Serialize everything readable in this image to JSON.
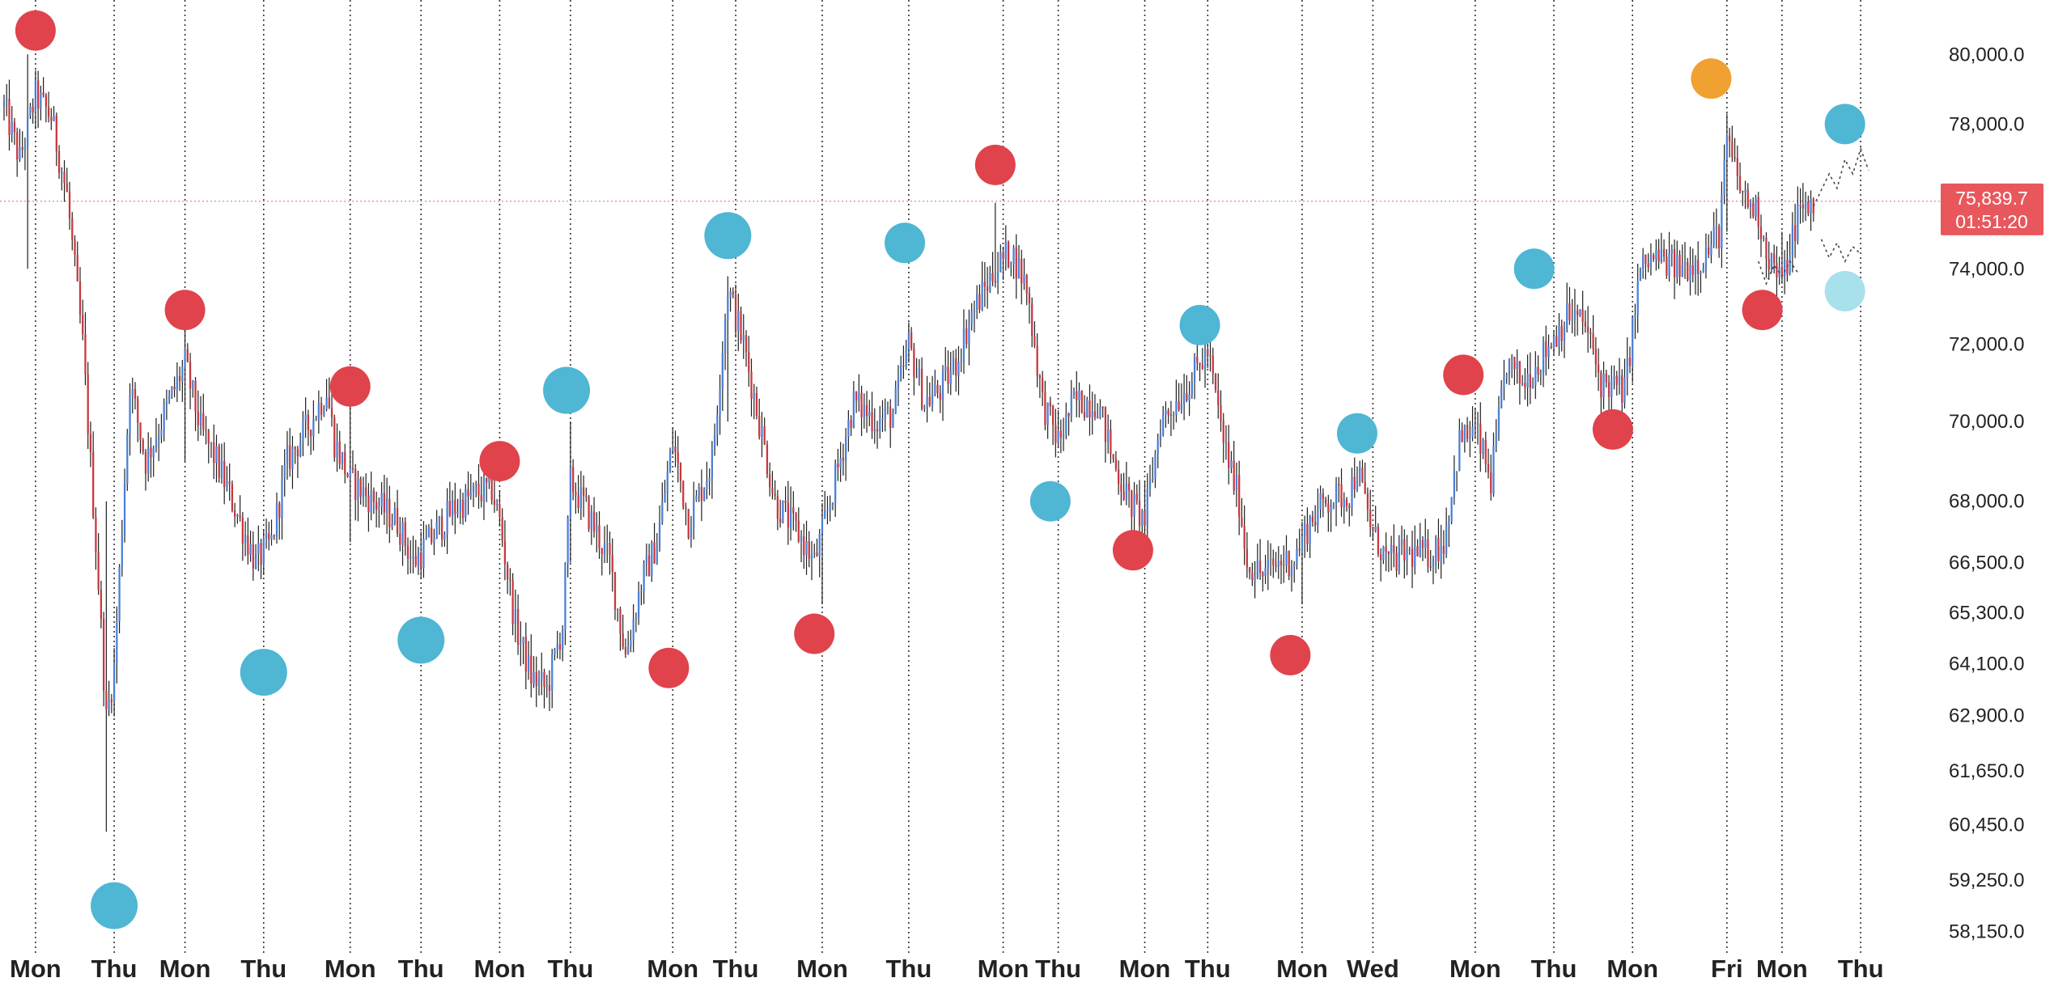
{
  "colors": {
    "up": "#4a7fd6",
    "down": "#c8373f",
    "wick": "#1f1f1f",
    "marker_red": "#e0434b",
    "marker_blue": "#4fb6d4",
    "marker_orange": "#f0a132",
    "marker_light": "#a8e0eb",
    "price_line": "#d9534f",
    "badge_bg": "#e8575c",
    "grid": "#333333",
    "text": "#222222"
  },
  "current_price": {
    "price": "75,839.7",
    "countdown": "01:51:20",
    "value": 75839.7
  },
  "chart_data": {
    "type": "candlestick",
    "title": "",
    "x_index_max": 240,
    "y_scale": "log",
    "ylim": [
      57700,
      81600
    ],
    "y_ticks": [
      {
        "value": 80000,
        "label": "80,000.0"
      },
      {
        "value": 78000,
        "label": "78,000.0"
      },
      {
        "value": 74000,
        "label": "74,000.0"
      },
      {
        "value": 72000,
        "label": "72,000.0"
      },
      {
        "value": 70000,
        "label": "70,000.0"
      },
      {
        "value": 68000,
        "label": "68,000.0"
      },
      {
        "value": 66500,
        "label": "66,500.0"
      },
      {
        "value": 65300,
        "label": "65,300.0"
      },
      {
        "value": 64100,
        "label": "64,100.0"
      },
      {
        "value": 62900,
        "label": "62,900.0"
      },
      {
        "value": 61650,
        "label": "61,650.0"
      },
      {
        "value": 60450,
        "label": "60,450.0"
      },
      {
        "value": 59250,
        "label": "59,250.0"
      },
      {
        "value": 58150,
        "label": "58,150.0"
      }
    ],
    "x_labels": [
      {
        "i": 4,
        "label": "Mon"
      },
      {
        "i": 14,
        "label": "Thu"
      },
      {
        "i": 23,
        "label": "Mon"
      },
      {
        "i": 33,
        "label": "Thu"
      },
      {
        "i": 44,
        "label": "Mon"
      },
      {
        "i": 53,
        "label": "Thu"
      },
      {
        "i": 63,
        "label": "Mon"
      },
      {
        "i": 72,
        "label": "Thu"
      },
      {
        "i": 85,
        "label": "Mon"
      },
      {
        "i": 93,
        "label": "Thu"
      },
      {
        "i": 104,
        "label": "Mon"
      },
      {
        "i": 115,
        "label": "Thu"
      },
      {
        "i": 127,
        "label": "Mon"
      },
      {
        "i": 134,
        "label": "Thu"
      },
      {
        "i": 145,
        "label": "Mon"
      },
      {
        "i": 153,
        "label": "Thu"
      },
      {
        "i": 165,
        "label": "Mon"
      },
      {
        "i": 174,
        "label": "Wed"
      },
      {
        "i": 187,
        "label": "Mon"
      },
      {
        "i": 197,
        "label": "Thu"
      },
      {
        "i": 207,
        "label": "Mon"
      },
      {
        "i": 219,
        "label": "Fri"
      },
      {
        "i": 226,
        "label": "Mon"
      },
      {
        "i": 236,
        "label": "Thu"
      }
    ],
    "price_path": [
      [
        0,
        78500
      ],
      [
        2,
        77000
      ],
      [
        4,
        78800
      ],
      [
        6,
        78200
      ],
      [
        8,
        76000
      ],
      [
        10,
        72000
      ],
      [
        12,
        66000
      ],
      [
        13,
        62800
      ],
      [
        14,
        64000
      ],
      [
        16,
        71000
      ],
      [
        18,
        69000
      ],
      [
        21,
        70500
      ],
      [
        23,
        71500
      ],
      [
        25,
        69800
      ],
      [
        27,
        69000
      ],
      [
        30,
        67500
      ],
      [
        32,
        66500
      ],
      [
        34,
        67000
      ],
      [
        36,
        69000
      ],
      [
        39,
        70000
      ],
      [
        41,
        70800
      ],
      [
        42,
        69500
      ],
      [
        44,
        68500
      ],
      [
        47,
        68000
      ],
      [
        50,
        67500
      ],
      [
        52,
        66500
      ],
      [
        54,
        67000
      ],
      [
        57,
        67800
      ],
      [
        60,
        68200
      ],
      [
        62,
        68300
      ],
      [
        63,
        67500
      ],
      [
        65,
        65000
      ],
      [
        67,
        63800
      ],
      [
        69,
        63500
      ],
      [
        71,
        65000
      ],
      [
        72,
        68500
      ],
      [
        74,
        67800
      ],
      [
        77,
        66500
      ],
      [
        79,
        64300
      ],
      [
        81,
        66000
      ],
      [
        83,
        67000
      ],
      [
        85,
        69500
      ],
      [
        87,
        67500
      ],
      [
        90,
        69000
      ],
      [
        92,
        73500
      ],
      [
        94,
        72000
      ],
      [
        96,
        70000
      ],
      [
        98,
        68000
      ],
      [
        101,
        67200
      ],
      [
        103,
        66500
      ],
      [
        105,
        68000
      ],
      [
        108,
        70500
      ],
      [
        111,
        70000
      ],
      [
        113,
        70200
      ],
      [
        115,
        72000
      ],
      [
        117,
        70500
      ],
      [
        119,
        70800
      ],
      [
        121,
        71500
      ],
      [
        123,
        72800
      ],
      [
        126,
        74000
      ],
      [
        128,
        74500
      ],
      [
        130,
        73500
      ],
      [
        132,
        70500
      ],
      [
        134,
        69500
      ],
      [
        136,
        70500
      ],
      [
        139,
        70500
      ],
      [
        141,
        69000
      ],
      [
        143,
        68000
      ],
      [
        145,
        67500
      ],
      [
        147,
        70000
      ],
      [
        150,
        70800
      ],
      [
        153,
        71800
      ],
      [
        155,
        69500
      ],
      [
        157,
        68000
      ],
      [
        158,
        66500
      ],
      [
        160,
        66200
      ],
      [
        162,
        66500
      ],
      [
        164,
        66600
      ],
      [
        166,
        67500
      ],
      [
        168,
        68000
      ],
      [
        171,
        68200
      ],
      [
        172,
        68800
      ],
      [
        174,
        67200
      ],
      [
        176,
        66500
      ],
      [
        178,
        66700
      ],
      [
        181,
        66700
      ],
      [
        183,
        67000
      ],
      [
        185,
        69500
      ],
      [
        187,
        69800
      ],
      [
        189,
        68500
      ],
      [
        191,
        71500
      ],
      [
        193,
        71000
      ],
      [
        195,
        71500
      ],
      [
        197,
        72200
      ],
      [
        199,
        72800
      ],
      [
        201,
        72500
      ],
      [
        203,
        71000
      ],
      [
        206,
        70800
      ],
      [
        208,
        74000
      ],
      [
        210,
        74300
      ],
      [
        213,
        74000
      ],
      [
        216,
        74300
      ],
      [
        218,
        75000
      ],
      [
        219,
        77500
      ],
      [
        221,
        76000
      ],
      [
        223,
        75500
      ],
      [
        224,
        74500
      ],
      [
        226,
        73600
      ],
      [
        228,
        75500
      ],
      [
        230,
        75800
      ]
    ],
    "extreme_wicks": [
      {
        "i": 3,
        "high": 80000,
        "low": 74000
      },
      {
        "i": 13,
        "high": 68000,
        "low": 60300
      },
      {
        "i": 23,
        "high": 72500,
        "low": 69000
      },
      {
        "i": 44,
        "high": 70500,
        "low": 67000
      },
      {
        "i": 72,
        "high": 70000,
        "low": 66500
      },
      {
        "i": 92,
        "high": 73800,
        "low": 70000
      },
      {
        "i": 104,
        "high": 67000,
        "low": 65500
      },
      {
        "i": 126,
        "high": 75800,
        "low": 73500
      },
      {
        "i": 145,
        "high": 68500,
        "low": 67200
      },
      {
        "i": 165,
        "high": 67500,
        "low": 65500
      },
      {
        "i": 219,
        "high": 78300,
        "low": 75000
      },
      {
        "i": 226,
        "high": 75000,
        "low": 73600
      }
    ],
    "markers": [
      {
        "i": 4,
        "price": 80700,
        "color": "red",
        "size": "small"
      },
      {
        "i": 14,
        "price": 58700,
        "color": "blue",
        "size": "large"
      },
      {
        "i": 23,
        "price": 72900,
        "color": "red",
        "size": "small"
      },
      {
        "i": 33,
        "price": 63900,
        "color": "blue",
        "size": "large"
      },
      {
        "i": 44,
        "price": 70900,
        "color": "red",
        "size": "small"
      },
      {
        "i": 53,
        "price": 64650,
        "color": "blue",
        "size": "large"
      },
      {
        "i": 63,
        "price": 69000,
        "color": "red",
        "size": "small"
      },
      {
        "i": 71.5,
        "price": 70800,
        "color": "blue",
        "size": "large"
      },
      {
        "i": 84.5,
        "price": 64000,
        "color": "red",
        "size": "small"
      },
      {
        "i": 92,
        "price": 74900,
        "color": "blue",
        "size": "large"
      },
      {
        "i": 103,
        "price": 64800,
        "color": "red",
        "size": "small"
      },
      {
        "i": 114.5,
        "price": 74700,
        "color": "blue",
        "size": "small"
      },
      {
        "i": 126,
        "price": 76850,
        "color": "red",
        "size": "small"
      },
      {
        "i": 133,
        "price": 68000,
        "color": "blue",
        "size": "small"
      },
      {
        "i": 143.5,
        "price": 66800,
        "color": "red",
        "size": "small"
      },
      {
        "i": 152,
        "price": 72500,
        "color": "blue",
        "size": "small"
      },
      {
        "i": 163.5,
        "price": 64300,
        "color": "red",
        "size": "small"
      },
      {
        "i": 172,
        "price": 69700,
        "color": "blue",
        "size": "small"
      },
      {
        "i": 185.5,
        "price": 71200,
        "color": "red",
        "size": "small"
      },
      {
        "i": 194.5,
        "price": 74000,
        "color": "blue",
        "size": "small"
      },
      {
        "i": 204.5,
        "price": 69800,
        "color": "red",
        "size": "small"
      },
      {
        "i": 217,
        "price": 79300,
        "color": "orange",
        "size": "small"
      },
      {
        "i": 223.5,
        "price": 72900,
        "color": "red",
        "size": "small"
      },
      {
        "i": 234,
        "price": 78000,
        "color": "blue",
        "size": "small"
      },
      {
        "i": 234,
        "price": 73400,
        "color": "light",
        "size": "small"
      }
    ],
    "projection_paths": [
      [
        [
          230,
          75700
        ],
        [
          232,
          76600
        ],
        [
          233,
          76200
        ],
        [
          234,
          77000
        ],
        [
          235,
          76600
        ],
        [
          236,
          77300
        ],
        [
          237,
          76700
        ]
      ],
      [
        [
          231,
          74800
        ],
        [
          232,
          74300
        ],
        [
          233,
          74700
        ],
        [
          234,
          74200
        ],
        [
          235,
          74600
        ],
        [
          236,
          74400
        ]
      ],
      [
        [
          223,
          74200
        ],
        [
          224,
          73600
        ],
        [
          225,
          74100
        ],
        [
          226,
          73800
        ],
        [
          227,
          74200
        ],
        [
          228,
          73900
        ]
      ]
    ]
  }
}
